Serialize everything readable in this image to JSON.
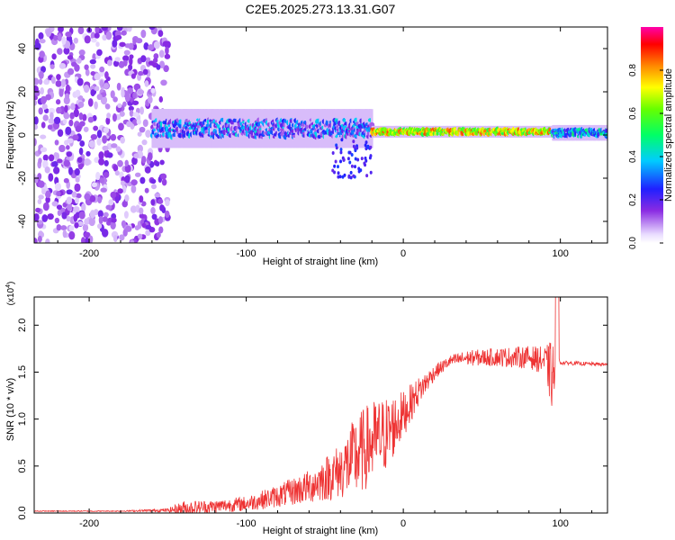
{
  "title": "C2E5.2025.273.13.31.G07",
  "chart_data": [
    {
      "type": "heatmap",
      "name": "spectrogram",
      "xlabel": "Height of straight line (km)",
      "ylabel": "Frequency (Hz)",
      "xlim": [
        -235,
        130
      ],
      "ylim": [
        -50,
        50
      ],
      "xticks": [
        -200,
        -100,
        0,
        100
      ],
      "yticks": [
        -40,
        -20,
        0,
        20,
        40
      ],
      "xtick_labels": [
        "-200",
        "-100",
        "0",
        "100"
      ],
      "ytick_labels": [
        "-40",
        "-20",
        "0",
        "20",
        "40"
      ],
      "colorbar": {
        "label": "Normalized spectral amplitude",
        "range": [
          0,
          1
        ],
        "ticks": [
          0.0,
          0.2,
          0.4,
          0.6,
          0.8
        ],
        "tick_labels": [
          "0.0",
          "0.2",
          "0.4",
          "0.6",
          "0.8"
        ]
      },
      "regions": [
        {
          "x": [
            -235,
            -150
          ],
          "description": "scattered noise",
          "amplitude": 0.05
        },
        {
          "x": [
            -160,
            -20
          ],
          "freq_center": 3,
          "freq_width": 10,
          "amplitude": 0.25
        },
        {
          "x": [
            -20,
            95
          ],
          "freq_center": 1.5,
          "freq_width": 3,
          "amplitude": 0.7
        },
        {
          "x": [
            95,
            130
          ],
          "freq_center": 1,
          "freq_width": 4,
          "amplitude": 0.35
        }
      ]
    },
    {
      "type": "line",
      "name": "snr",
      "xlabel": "Height of straight line (km)",
      "ylabel": "SNR (10 * v/v)",
      "y_multiplier": "(x10",
      "y_multiplier_exp": "4",
      "y_multiplier_close": ")",
      "xlim": [
        -235,
        130
      ],
      "ylim": [
        0,
        2.3
      ],
      "xticks": [
        -200,
        -100,
        0,
        100
      ],
      "yticks": [
        0.0,
        0.5,
        1.0,
        1.5,
        2.0
      ],
      "xtick_labels": [
        "-200",
        "-100",
        "0",
        "100"
      ],
      "ytick_labels": [
        "0.0",
        "0.5",
        "1.0",
        "1.5",
        "2.0"
      ],
      "color": "#ee3333",
      "envelope": {
        "x": [
          -235,
          -180,
          -150,
          -140,
          -120,
          -100,
          -80,
          -60,
          -40,
          -30,
          -20,
          -10,
          0,
          10,
          20,
          30,
          40,
          60,
          80,
          90,
          95,
          100,
          130
        ],
        "y": [
          0.02,
          0.02,
          0.03,
          0.05,
          0.07,
          0.1,
          0.18,
          0.28,
          0.45,
          0.6,
          0.75,
          0.85,
          1.05,
          1.3,
          1.5,
          1.62,
          1.65,
          1.66,
          1.66,
          1.62,
          1.45,
          1.6,
          1.58
        ],
        "amp": [
          0.005,
          0.005,
          0.02,
          0.08,
          0.07,
          0.08,
          0.12,
          0.18,
          0.3,
          0.45,
          0.45,
          0.4,
          0.25,
          0.15,
          0.08,
          0.06,
          0.08,
          0.1,
          0.12,
          0.15,
          0.4,
          0.02,
          0.02
        ]
      }
    }
  ]
}
